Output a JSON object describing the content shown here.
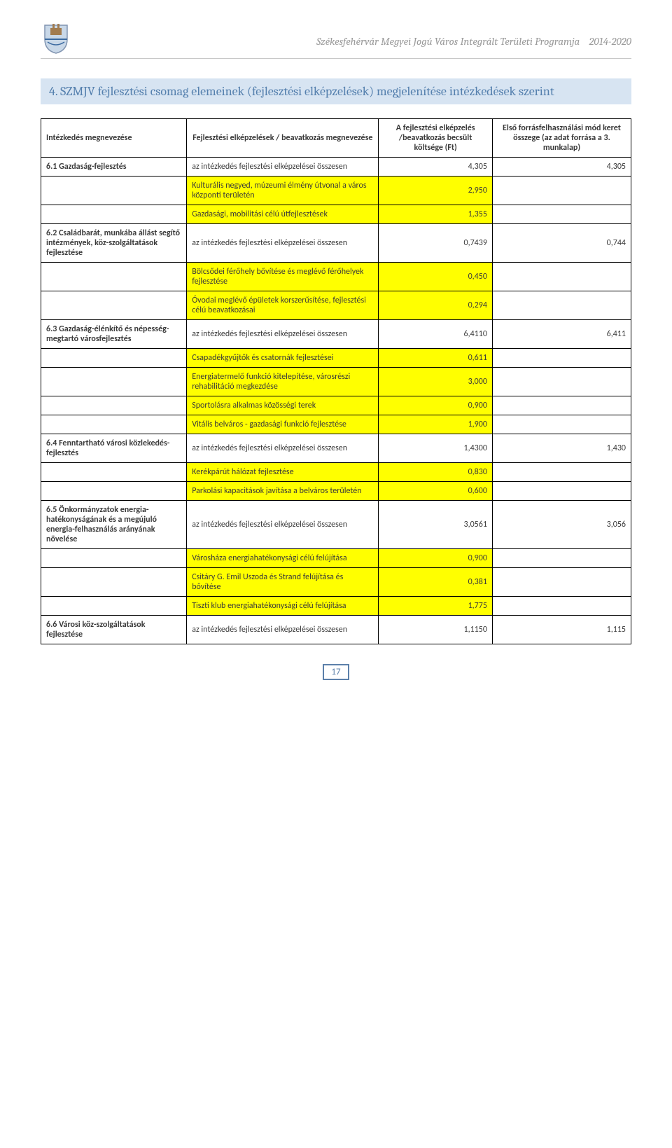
{
  "header": {
    "doc_title": "Székesfehérvár Megyei Jogú Város Integrált Területi Programja",
    "doc_years": "2014-2020"
  },
  "section": {
    "number": "4.",
    "title": "SZMJV fejlesztési csomag elemeinek (fejlesztési elképzelések) megjelenítése intézkedések szerint"
  },
  "table": {
    "head": {
      "c1": "Intézkedés megnevezése",
      "c2": "Fejlesztési elképzelések / beavatkozás megnevezése",
      "c3": "A fejlesztési elképzelés /beavatkozás becsült költsége (Ft)",
      "c4": "Első forrásfelhasználási mód keret összege (az adat forrása a 3. munkalap)"
    },
    "rows": [
      {
        "k": "r0",
        "a": "6.1 Gazdaság-fejlesztés",
        "b": "az intézkedés fejlesztési elképzelései összesen",
        "c": "4,305",
        "d": "4,305",
        "hl": false
      },
      {
        "k": "r1",
        "a": "",
        "b": "Kulturális negyed, múzeumi élmény útvonal a város központi területén",
        "c": "2,950",
        "d": "",
        "hl": true
      },
      {
        "k": "r2",
        "a": "",
        "b": "Gazdasági, mobilitási célú útfejlesztések",
        "c": "1,355",
        "d": "",
        "hl": true
      },
      {
        "k": "r3",
        "a": "6.2 Családbarát, munkába állást segítő intézmények, köz-szolgáltatások fejlesztése",
        "b": "az intézkedés fejlesztési elképzelései összesen",
        "c": "0,7439",
        "d": "0,744",
        "hl": false
      },
      {
        "k": "r4",
        "a": "",
        "b": "Bölcsődei férőhely bővítése és meglévő férőhelyek fejlesztése",
        "c": "0,450",
        "d": "",
        "hl": true
      },
      {
        "k": "r5",
        "a": "",
        "b": "Óvodai meglévő épületek korszerűsítése, fejlesztési célú beavatkozásai",
        "c": "0,294",
        "d": "",
        "hl": true
      },
      {
        "k": "r6",
        "a": "6.3 Gazdaság-élénkítő és népesség-megtartó városfejlesztés",
        "b": "az intézkedés fejlesztési elképzelései összesen",
        "c": "6,4110",
        "d": "6,411",
        "hl": false
      },
      {
        "k": "r7",
        "a": "",
        "b": "Csapadékgyűjtők és csatornák fejlesztései",
        "c": "0,611",
        "d": "",
        "hl": true
      },
      {
        "k": "r8",
        "a": "",
        "b": "Energiatermelő funkció kitelepítése, városrészi rehabilitáció megkezdése",
        "c": "3,000",
        "d": "",
        "hl": true
      },
      {
        "k": "r9",
        "a": "",
        "b": "Sportolásra alkalmas közösségi terek",
        "c": "0,900",
        "d": "",
        "hl": true
      },
      {
        "k": "r10",
        "a": "",
        "b": "Vitális belváros - gazdasági funkció fejlesztése",
        "c": "1,900",
        "d": "",
        "hl": true
      },
      {
        "k": "r11",
        "a": "6.4 Fenntartható városi közlekedés-fejlesztés",
        "b": "az intézkedés fejlesztési elképzelései összesen",
        "c": "1,4300",
        "d": "1,430",
        "hl": false
      },
      {
        "k": "r12",
        "a": "",
        "b": "Kerékpárút hálózat fejlesztése",
        "c": "0,830",
        "d": "",
        "hl": true
      },
      {
        "k": "r13",
        "a": "",
        "b": "Parkolási kapacitások javítása a belváros területén",
        "c": "0,600",
        "d": "",
        "hl": true
      },
      {
        "k": "r14",
        "a": "6.5 Önkormányzatok energia-hatékonyságának és a megújuló energia-felhasználás arányának növelése",
        "b": "az intézkedés fejlesztési elképzelései összesen",
        "c": "3,0561",
        "d": "3,056",
        "hl": false
      },
      {
        "k": "r15",
        "a": "",
        "b": "Városháza energiahatékonysági célú felújítása",
        "c": "0,900",
        "d": "",
        "hl": true
      },
      {
        "k": "r16",
        "a": "",
        "b": "Csitáry G. Emil Uszoda és Strand felújítása és bővítése",
        "c": "0,381",
        "d": "",
        "hl": true
      },
      {
        "k": "r17",
        "a": "",
        "b": "Tiszti klub energiahatékonysági célú felújítása",
        "c": "1,775",
        "d": "",
        "hl": true
      },
      {
        "k": "r18",
        "a": "6.6 Városi köz-szolgáltatások fejlesztése",
        "b": "az intézkedés fejlesztési elképzelései összesen",
        "c": "1,1150",
        "d": "1,115",
        "hl": false
      }
    ]
  },
  "page_number": "17",
  "colors": {
    "heading_bg": "#d7e4f2",
    "heading_text": "#5580ae",
    "highlight": "#ffff00",
    "header_text": "#9a9a9a",
    "border": "#000000"
  }
}
